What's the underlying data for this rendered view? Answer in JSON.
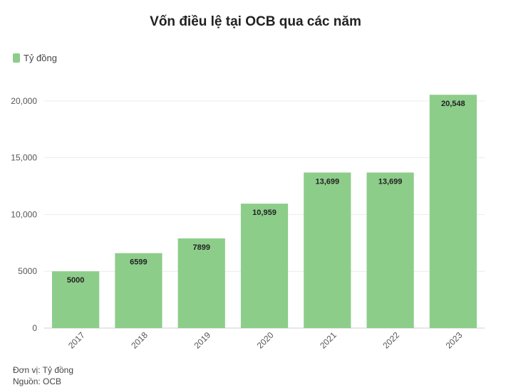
{
  "chart_data": {
    "type": "bar",
    "title": "Vốn điều lệ tại OCB qua các năm",
    "legend": {
      "label": "Tỷ đồng",
      "placement": "top-left"
    },
    "categories": [
      "2017",
      "2018",
      "2019",
      "2020",
      "2021",
      "2022",
      "2023"
    ],
    "series": [
      {
        "name": "Tỷ đồng",
        "values": [
          5000,
          6599,
          7899,
          10959,
          13699,
          13699,
          20548
        ]
      }
    ],
    "data_labels": [
      "5000",
      "6599",
      "7899",
      "10,959",
      "13,699",
      "13,699",
      "20,548"
    ],
    "y_ticks": [
      0,
      5000,
      10000,
      15000,
      20000
    ],
    "y_tick_labels": [
      "0",
      "5000",
      "10,000",
      "15,000",
      "20,000"
    ],
    "ylim": [
      0,
      22000
    ],
    "grid": true,
    "bar_color": "#8dcd8a"
  },
  "footer": {
    "unit": "Đơn vị: Tỷ đồng",
    "source": "Nguồn: OCB"
  }
}
